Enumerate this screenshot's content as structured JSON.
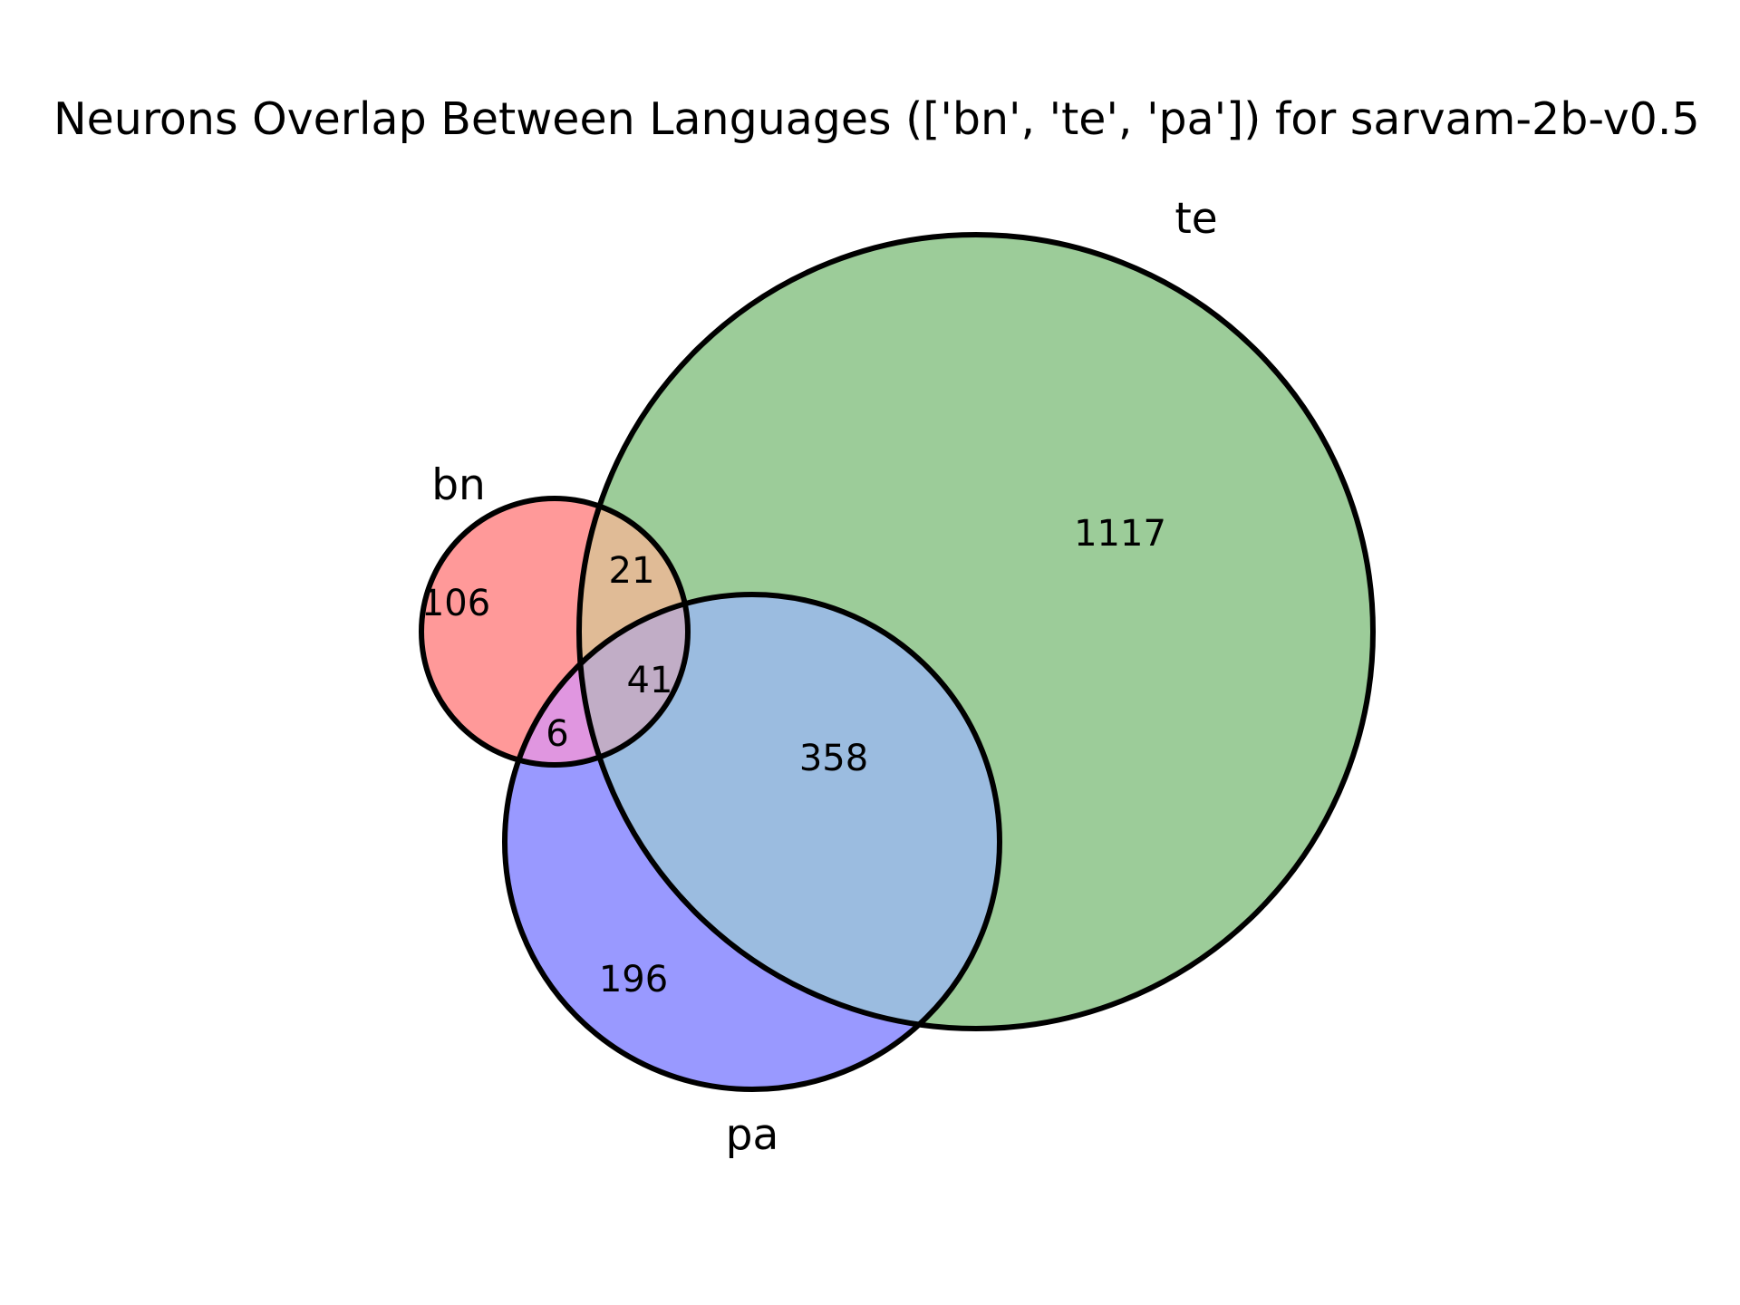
{
  "title": "Neurons Overlap Between Languages (['bn', 'te', 'pa']) for sarvam-2b-v0.5",
  "sets": [
    {
      "id": "bn",
      "label": "bn",
      "color": "#ff9999"
    },
    {
      "id": "te",
      "label": "te",
      "color": "#9ccc99"
    },
    {
      "id": "pa",
      "label": "pa",
      "color": "#9999ff"
    }
  ],
  "regions": [
    {
      "id": "bn_only",
      "label": "106",
      "color": "#ff9999"
    },
    {
      "id": "te_only",
      "label": "1117",
      "color": "#9ccc99"
    },
    {
      "id": "pa_only",
      "label": "196",
      "color": "#9999ff"
    },
    {
      "id": "bn_te",
      "label": "21",
      "color": "#e0bb96"
    },
    {
      "id": "bn_pa",
      "label": "6",
      "color": "#e096e0"
    },
    {
      "id": "te_pa",
      "label": "358",
      "color": "#9bbce0"
    },
    {
      "id": "bn_te_pa",
      "label": "41",
      "color": "#c1adc6"
    }
  ],
  "outline_color": "#000000"
}
